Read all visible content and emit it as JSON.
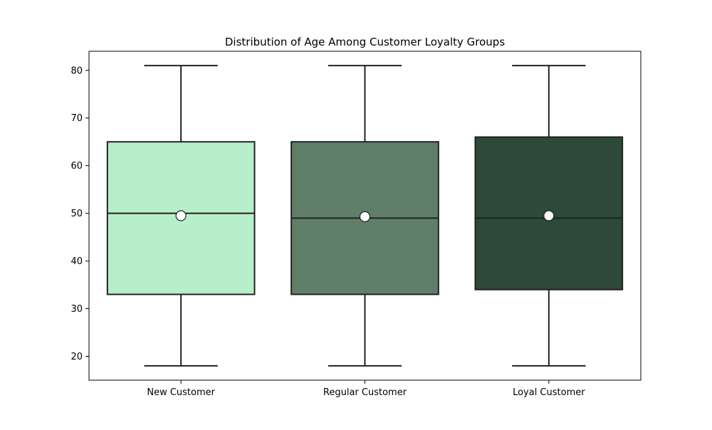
{
  "chart_data": {
    "type": "box",
    "title": "Distribution of Age Among Customer Loyalty Groups",
    "xlabel": "",
    "ylabel": "",
    "ylim": [
      15,
      84
    ],
    "yticks": [
      20,
      30,
      40,
      50,
      60,
      70,
      80
    ],
    "grid": false,
    "legend": "none",
    "categories": [
      "New Customer",
      "Regular Customer",
      "Loyal Customer"
    ],
    "boxes": [
      {
        "category": "New Customer",
        "min": 18,
        "q1": 33,
        "median": 50,
        "q3": 65,
        "max": 81,
        "mean": 49.5,
        "color": "#b6efca"
      },
      {
        "category": "Regular Customer",
        "min": 18,
        "q1": 33,
        "median": 49,
        "q3": 65,
        "max": 81,
        "mean": 49.3,
        "color": "#5f7f68"
      },
      {
        "category": "Loyal Customer",
        "min": 18,
        "q1": 34,
        "median": 49,
        "q3": 66,
        "max": 81,
        "mean": 49.5,
        "color": "#2d4a39"
      }
    ],
    "edge_color": "#222222",
    "mean_marker_color": "#ffffff"
  }
}
